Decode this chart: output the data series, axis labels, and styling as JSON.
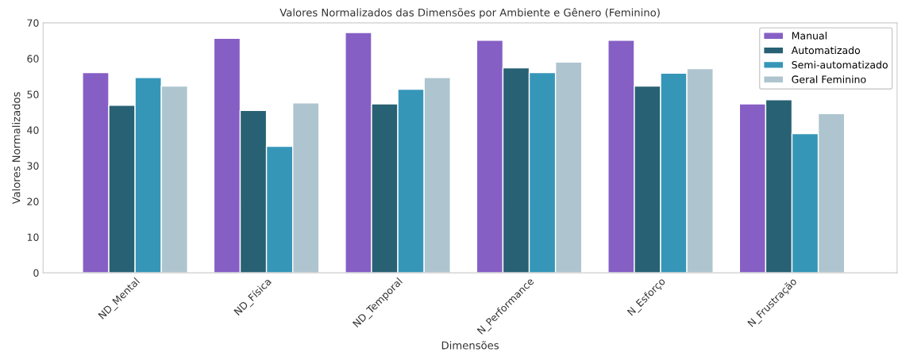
{
  "chart_data": {
    "type": "bar",
    "title": "Valores Normalizados das Dimensões por Ambiente e Gênero (Feminino)",
    "xlabel": "Dimensões",
    "ylabel": "Valores Normalizados",
    "categories": [
      "ND_Mental",
      "ND_Física",
      "ND_Temporal",
      "N_Performance",
      "N_Esforço",
      "N_Frustração"
    ],
    "series": [
      {
        "name": "Manual",
        "color": "#865fc5",
        "values": [
          56.1,
          65.7,
          67.3,
          65.1,
          65.1,
          47.3
        ]
      },
      {
        "name": "Automatizado",
        "color": "#286173",
        "values": [
          46.9,
          45.5,
          47.3,
          57.4,
          52.3,
          48.5
        ]
      },
      {
        "name": "Semi-automatizado",
        "color": "#3696b8",
        "values": [
          54.7,
          35.4,
          51.4,
          56.1,
          55.9,
          39.0
        ]
      },
      {
        "name": "Geral Feminino",
        "color": "#aec5cf",
        "values": [
          52.3,
          47.6,
          54.7,
          59.0,
          57.2,
          44.6
        ]
      }
    ],
    "ylim": [
      0,
      70
    ],
    "yticks": [
      0,
      10,
      20,
      30,
      40,
      50,
      60,
      70
    ],
    "grid": false,
    "legend": "top right"
  }
}
